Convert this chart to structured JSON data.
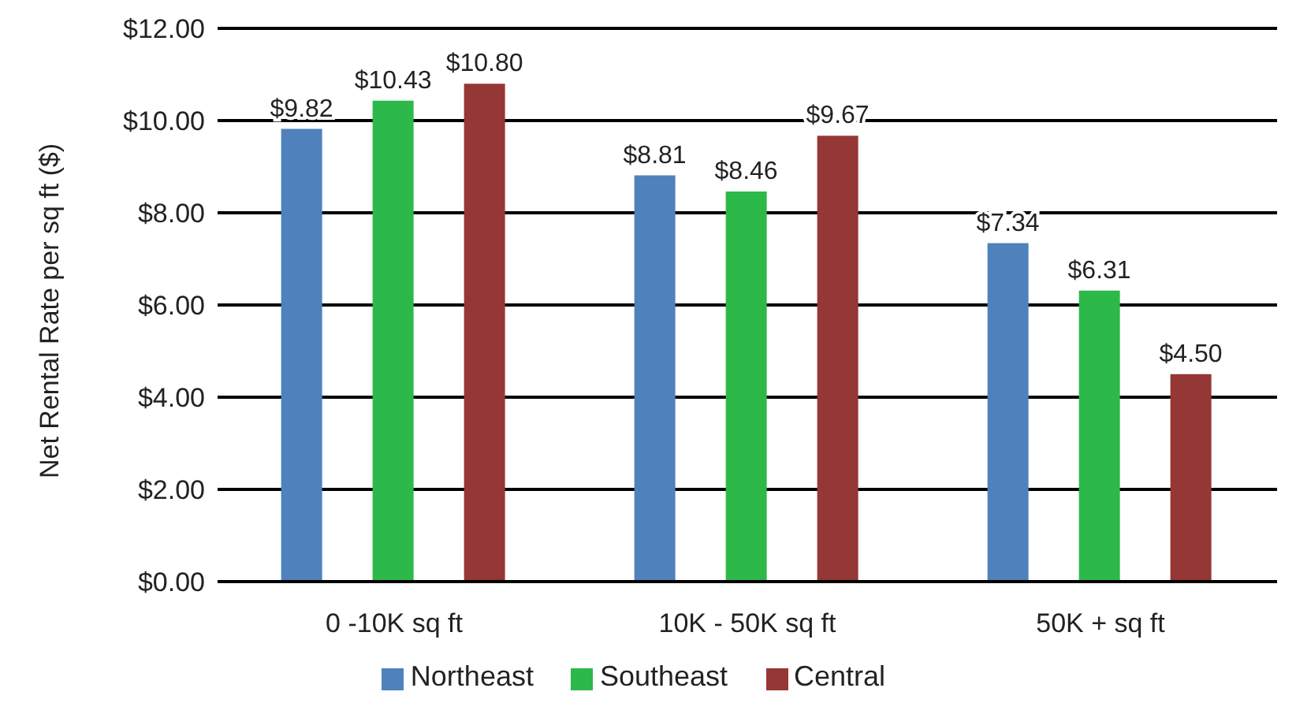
{
  "chart_data": {
    "type": "bar",
    "ylabel": "Net Rental Rate per sq ft ($)",
    "categories": [
      "0 -10K sq ft",
      "10K - 50K sq ft",
      "50K + sq ft"
    ],
    "series": [
      {
        "name": "Northeast",
        "color": "#4f81bd",
        "values": [
          9.82,
          8.81,
          7.34
        ],
        "value_labels": [
          "$9.82",
          "$8.81",
          "$7.34"
        ]
      },
      {
        "name": "Southeast",
        "color": "#2db84a",
        "values": [
          10.43,
          8.46,
          6.31
        ],
        "value_labels": [
          "$10.43",
          "$8.46",
          "$6.31"
        ]
      },
      {
        "name": "Central",
        "color": "#953735",
        "values": [
          10.8,
          9.67,
          4.5
        ],
        "value_labels": [
          "$10.80",
          "$9.67",
          "$4.50"
        ]
      }
    ],
    "ylim": [
      0,
      12
    ],
    "yticks": [
      {
        "value": 0,
        "label": "$0.00"
      },
      {
        "value": 2,
        "label": "$2.00"
      },
      {
        "value": 4,
        "label": "$4.00"
      },
      {
        "value": 6,
        "label": "$6.00"
      },
      {
        "value": 8,
        "label": "$8.00"
      },
      {
        "value": 10,
        "label": "$10.00"
      },
      {
        "value": 12,
        "label": "$12.00"
      }
    ],
    "grid": "y",
    "legend": "bottom"
  }
}
